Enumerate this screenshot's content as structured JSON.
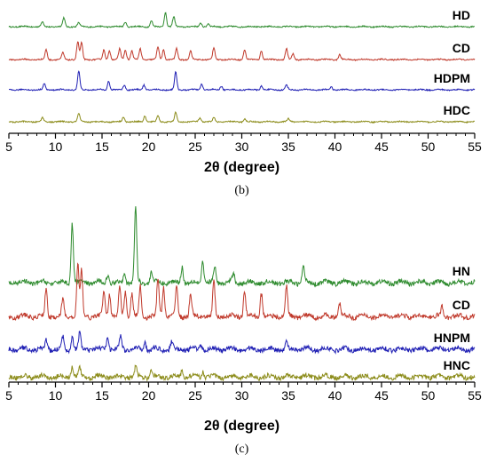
{
  "chart_data": [
    {
      "type": "line",
      "panel_label": "(b)",
      "xlabel": "2θ (degree)",
      "xlim": [
        5,
        55
      ],
      "x_ticks": [
        5,
        10,
        15,
        20,
        25,
        30,
        35,
        40,
        45,
        50,
        55
      ],
      "grid": false,
      "legend": "labels at right end of each trace",
      "series": [
        {
          "name": "HD",
          "color": "#2e8b2e",
          "peaks": [
            [
              8.6,
              0.25
            ],
            [
              10.9,
              0.45
            ],
            [
              12.5,
              0.2
            ],
            [
              17.5,
              0.25
            ],
            [
              20.3,
              0.3
            ],
            [
              21.8,
              0.75
            ],
            [
              22.7,
              0.5
            ],
            [
              25.6,
              0.2
            ],
            [
              26.4,
              0.15
            ]
          ]
        },
        {
          "name": "CD",
          "color": "#c0392b",
          "peaks": [
            [
              9.0,
              0.5
            ],
            [
              10.8,
              0.35
            ],
            [
              12.4,
              0.9
            ],
            [
              12.8,
              0.85
            ],
            [
              15.2,
              0.5
            ],
            [
              15.8,
              0.45
            ],
            [
              16.9,
              0.55
            ],
            [
              17.5,
              0.5
            ],
            [
              18.2,
              0.45
            ],
            [
              19.1,
              0.55
            ],
            [
              21.0,
              0.65
            ],
            [
              21.6,
              0.5
            ],
            [
              23.0,
              0.55
            ],
            [
              24.5,
              0.45
            ],
            [
              27.0,
              0.6
            ],
            [
              30.3,
              0.5
            ],
            [
              32.1,
              0.45
            ],
            [
              34.8,
              0.55
            ],
            [
              35.5,
              0.3
            ],
            [
              40.5,
              0.25
            ]
          ]
        },
        {
          "name": "HDPM",
          "color": "#1f1fb4",
          "peaks": [
            [
              8.8,
              0.3
            ],
            [
              12.5,
              0.95
            ],
            [
              15.7,
              0.45
            ],
            [
              17.4,
              0.25
            ],
            [
              19.5,
              0.25
            ],
            [
              22.9,
              0.9
            ],
            [
              25.7,
              0.3
            ],
            [
              27.8,
              0.2
            ],
            [
              32.1,
              0.2
            ],
            [
              34.8,
              0.25
            ],
            [
              39.6,
              0.15
            ]
          ]
        },
        {
          "name": "HDC",
          "color": "#8c8c1a",
          "peaks": [
            [
              8.6,
              0.2
            ],
            [
              12.5,
              0.4
            ],
            [
              17.3,
              0.25
            ],
            [
              19.6,
              0.3
            ],
            [
              21.0,
              0.3
            ],
            [
              22.9,
              0.45
            ],
            [
              25.5,
              0.2
            ],
            [
              27.0,
              0.2
            ],
            [
              30.3,
              0.15
            ],
            [
              35.0,
              0.15
            ]
          ]
        }
      ]
    },
    {
      "type": "line",
      "panel_label": "(c)",
      "xlabel": "2θ (degree)",
      "xlim": [
        5,
        55
      ],
      "x_ticks": [
        5,
        10,
        15,
        20,
        25,
        30,
        35,
        40,
        45,
        50,
        55
      ],
      "grid": false,
      "legend": "labels at right end of each trace",
      "series": [
        {
          "name": "HN",
          "color": "#2e8b2e",
          "peaks": [
            [
              11.8,
              0.8
            ],
            [
              15.6,
              0.12
            ],
            [
              17.4,
              0.15
            ],
            [
              18.6,
              1.0
            ],
            [
              20.3,
              0.15
            ],
            [
              23.6,
              0.22
            ],
            [
              25.8,
              0.3
            ],
            [
              27.1,
              0.2
            ],
            [
              29.1,
              0.12
            ],
            [
              36.6,
              0.22
            ]
          ]
        },
        {
          "name": "CD",
          "color": "#c0392b",
          "peaks": [
            [
              9.0,
              0.35
            ],
            [
              10.8,
              0.22
            ],
            [
              12.4,
              0.7
            ],
            [
              12.8,
              0.6
            ],
            [
              15.2,
              0.35
            ],
            [
              15.8,
              0.3
            ],
            [
              16.9,
              0.4
            ],
            [
              17.5,
              0.35
            ],
            [
              18.2,
              0.3
            ],
            [
              19.1,
              0.4
            ],
            [
              21.0,
              0.5
            ],
            [
              21.6,
              0.4
            ],
            [
              23.0,
              0.4
            ],
            [
              24.5,
              0.3
            ],
            [
              27.0,
              0.45
            ],
            [
              30.3,
              0.35
            ],
            [
              32.1,
              0.32
            ],
            [
              34.8,
              0.4
            ],
            [
              40.5,
              0.18
            ],
            [
              51.5,
              0.12
            ]
          ]
        },
        {
          "name": "HNPM",
          "color": "#1f1fb4",
          "peaks": [
            [
              9.0,
              0.12
            ],
            [
              10.8,
              0.15
            ],
            [
              11.8,
              0.18
            ],
            [
              12.6,
              0.2
            ],
            [
              15.6,
              0.2
            ],
            [
              17.0,
              0.18
            ],
            [
              19.6,
              0.1
            ],
            [
              22.5,
              0.1
            ],
            [
              25.6,
              0.08
            ],
            [
              34.8,
              0.08
            ]
          ]
        },
        {
          "name": "HNC",
          "color": "#8c8c1a",
          "peaks": [
            [
              11.8,
              0.15
            ],
            [
              12.6,
              0.1
            ],
            [
              18.6,
              0.12
            ],
            [
              20.3,
              0.08
            ],
            [
              23.6,
              0.1
            ],
            [
              25.8,
              0.08
            ]
          ]
        }
      ]
    }
  ]
}
